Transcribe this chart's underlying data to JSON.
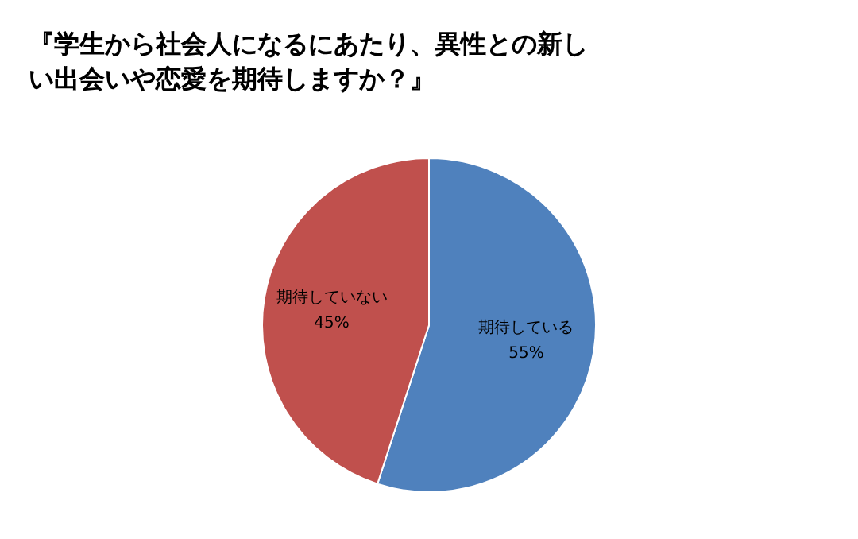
{
  "chart_data": {
    "type": "pie",
    "title": "『学生から社会人になるにあたり、異性との新しい出会いや恋愛を期待しますか？』",
    "categories": [
      "期待している",
      "期待していない"
    ],
    "values": [
      55,
      45
    ],
    "colors": [
      "#4f81bd",
      "#c0504d"
    ],
    "value_labels": [
      "55%",
      "45%"
    ],
    "legend": false
  }
}
